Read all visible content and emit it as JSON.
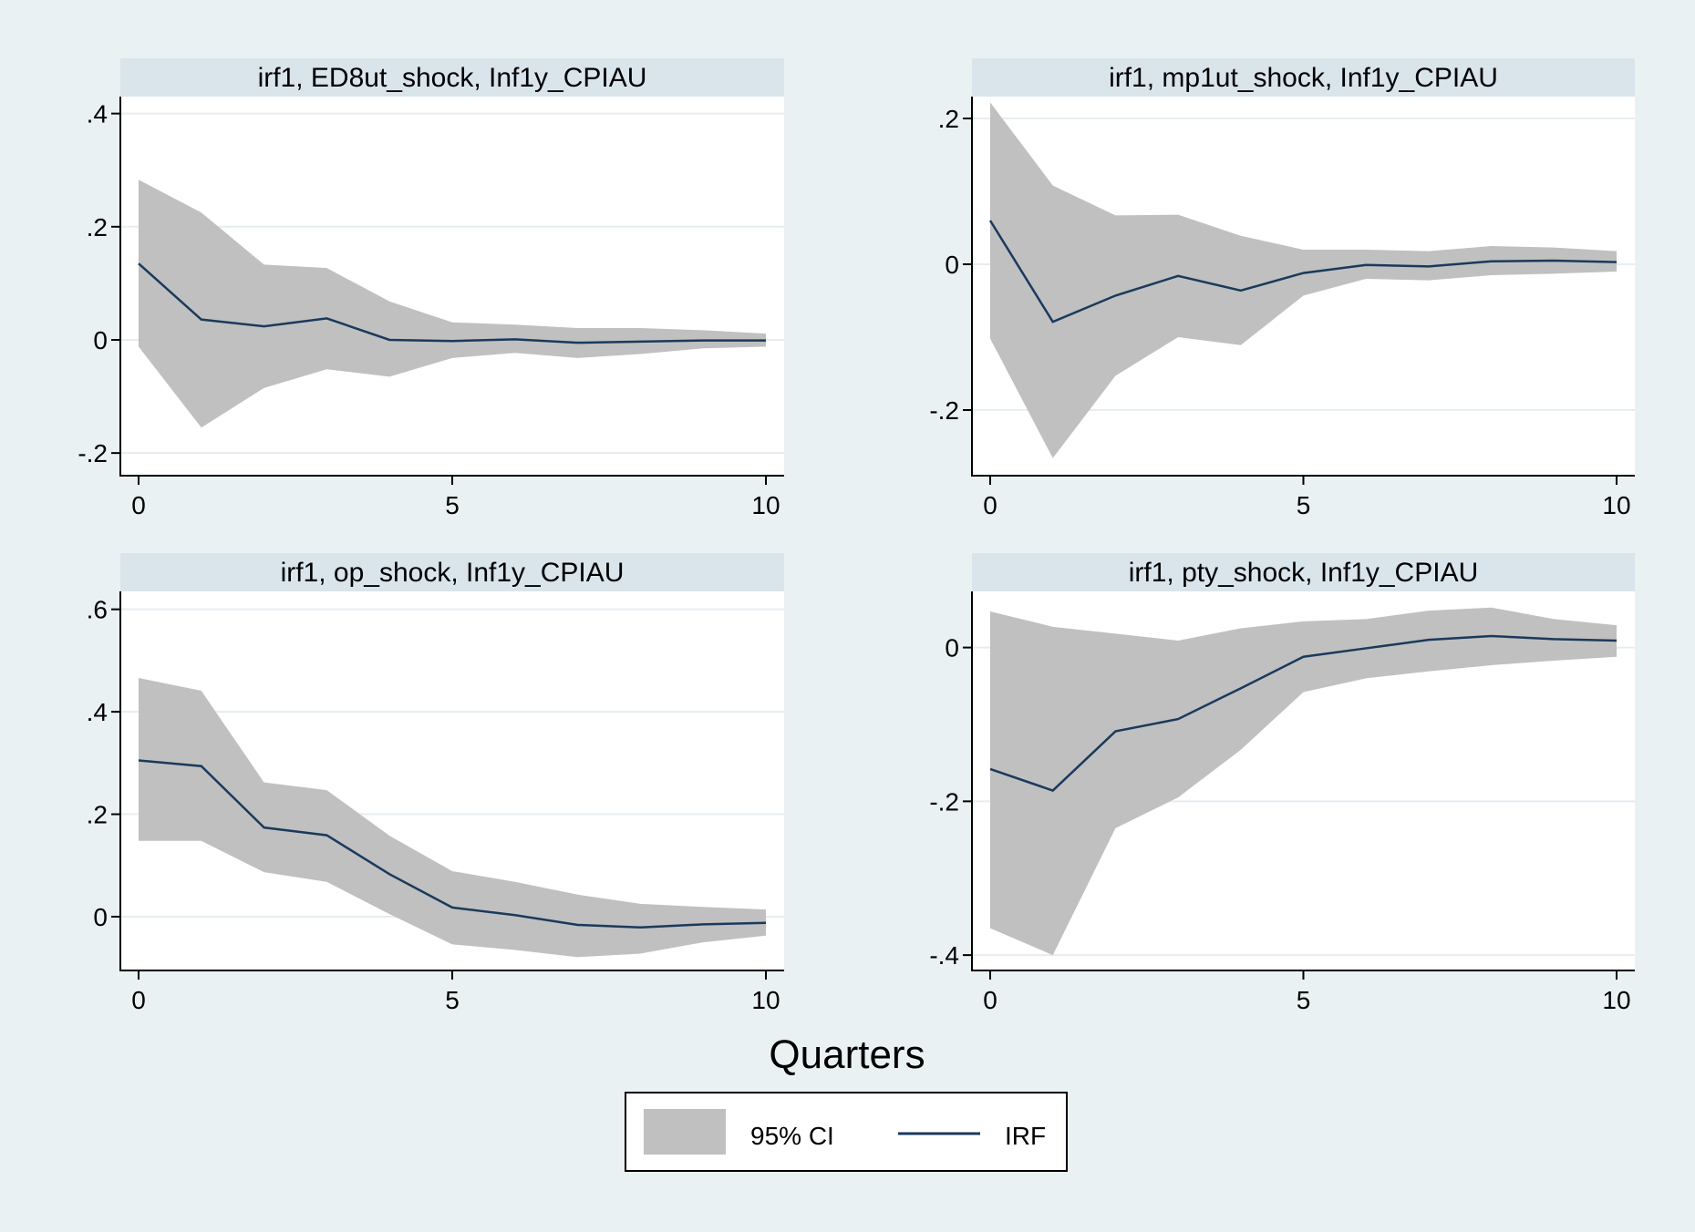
{
  "figure": {
    "xlabel": "Quarters",
    "legend": {
      "placement": "bottom-center",
      "items": [
        {
          "label": "95% CI",
          "kind": "band",
          "color": "#c0c0c0"
        },
        {
          "label": "IRF",
          "kind": "line",
          "color": "#1a3a5c"
        }
      ]
    },
    "colors": {
      "background": "#eaf1f3",
      "plot_area": "#ffffff",
      "title_bar": "#d9e5eb",
      "grid": "#e6edf0",
      "band": "#c0c0c0",
      "line": "#1a3a5c"
    }
  },
  "chart_data": [
    {
      "type": "line",
      "title": "irf1, ED8ut_shock, Inf1y_CPIAU",
      "x": [
        0,
        1,
        2,
        3,
        4,
        5,
        6,
        7,
        8,
        9,
        10
      ],
      "series": [
        {
          "name": "IRF",
          "values": [
            0.135,
            0.036,
            0.024,
            0.038,
            0.0,
            -0.002,
            0.001,
            -0.005,
            -0.003,
            -0.001,
            -0.001
          ]
        },
        {
          "name": "95% CI",
          "lower": [
            -0.012,
            -0.155,
            -0.085,
            -0.052,
            -0.065,
            -0.032,
            -0.023,
            -0.032,
            -0.025,
            -0.015,
            -0.012
          ],
          "upper": [
            0.283,
            0.225,
            0.133,
            0.127,
            0.068,
            0.031,
            0.027,
            0.021,
            0.021,
            0.017,
            0.011
          ]
        }
      ],
      "xticks": [
        0,
        5,
        10
      ],
      "yticks": [
        -0.2,
        0,
        0.2,
        0.4
      ],
      "ytick_labels": [
        "-.2",
        "0",
        ".2",
        ".4"
      ],
      "xlim": [
        0,
        10
      ],
      "ylim": [
        -0.24,
        0.43
      ],
      "grid": true
    },
    {
      "type": "line",
      "title": "irf1, mp1ut_shock, Inf1y_CPIAU",
      "x": [
        0,
        1,
        2,
        3,
        4,
        5,
        6,
        7,
        8,
        9,
        10
      ],
      "series": [
        {
          "name": "IRF",
          "values": [
            0.06,
            -0.079,
            -0.043,
            -0.016,
            -0.036,
            -0.012,
            -0.001,
            -0.003,
            0.004,
            0.005,
            0.003
          ]
        },
        {
          "name": "95% CI",
          "lower": [
            -0.102,
            -0.266,
            -0.153,
            -0.1,
            -0.111,
            -0.043,
            -0.02,
            -0.022,
            -0.015,
            -0.013,
            -0.01
          ],
          "upper": [
            0.222,
            0.108,
            0.067,
            0.068,
            0.039,
            0.02,
            0.02,
            0.018,
            0.025,
            0.023,
            0.018
          ]
        }
      ],
      "xticks": [
        0,
        5,
        10
      ],
      "yticks": [
        -0.2,
        0,
        0.2
      ],
      "ytick_labels": [
        "-.2",
        "0",
        ".2"
      ],
      "xlim": [
        0,
        10
      ],
      "ylim": [
        -0.29,
        0.23
      ],
      "grid": true
    },
    {
      "type": "line",
      "title": "irf1, op_shock, Inf1y_CPIAU",
      "x": [
        0,
        1,
        2,
        3,
        4,
        5,
        6,
        7,
        8,
        9,
        10
      ],
      "series": [
        {
          "name": "IRF",
          "values": [
            0.305,
            0.294,
            0.174,
            0.159,
            0.083,
            0.018,
            0.003,
            -0.016,
            -0.021,
            -0.015,
            -0.012
          ]
        },
        {
          "name": "95% CI",
          "lower": [
            0.148,
            0.148,
            0.087,
            0.068,
            0.005,
            -0.054,
            -0.065,
            -0.079,
            -0.072,
            -0.05,
            -0.037
          ],
          "upper": [
            0.466,
            0.441,
            0.262,
            0.247,
            0.158,
            0.089,
            0.068,
            0.043,
            0.025,
            0.019,
            0.014
          ]
        }
      ],
      "xticks": [
        0,
        5,
        10
      ],
      "yticks": [
        0,
        0.2,
        0.4,
        0.6
      ],
      "ytick_labels": [
        "0",
        ".2",
        ".4",
        ".6"
      ],
      "xlim": [
        0,
        10
      ],
      "ylim": [
        -0.105,
        0.635
      ],
      "grid": true
    },
    {
      "type": "line",
      "title": "irf1, pty_shock, Inf1y_CPIAU",
      "x": [
        0,
        1,
        2,
        3,
        4,
        5,
        6,
        7,
        8,
        9,
        10
      ],
      "series": [
        {
          "name": "IRF",
          "values": [
            -0.158,
            -0.186,
            -0.109,
            -0.093,
            -0.053,
            -0.012,
            -0.001,
            0.01,
            0.015,
            0.011,
            0.009
          ]
        },
        {
          "name": "95% CI",
          "lower": [
            -0.365,
            -0.4,
            -0.235,
            -0.195,
            -0.133,
            -0.058,
            -0.04,
            -0.031,
            -0.023,
            -0.017,
            -0.012
          ],
          "upper": [
            0.047,
            0.027,
            0.018,
            0.009,
            0.025,
            0.034,
            0.037,
            0.048,
            0.052,
            0.037,
            0.029
          ]
        }
      ],
      "xticks": [
        0,
        5,
        10
      ],
      "yticks": [
        -0.4,
        -0.2,
        0
      ],
      "ytick_labels": [
        "-.4",
        "-.2",
        "0"
      ],
      "xlim": [
        0,
        10
      ],
      "ylim": [
        -0.42,
        0.073
      ],
      "grid": true
    }
  ]
}
